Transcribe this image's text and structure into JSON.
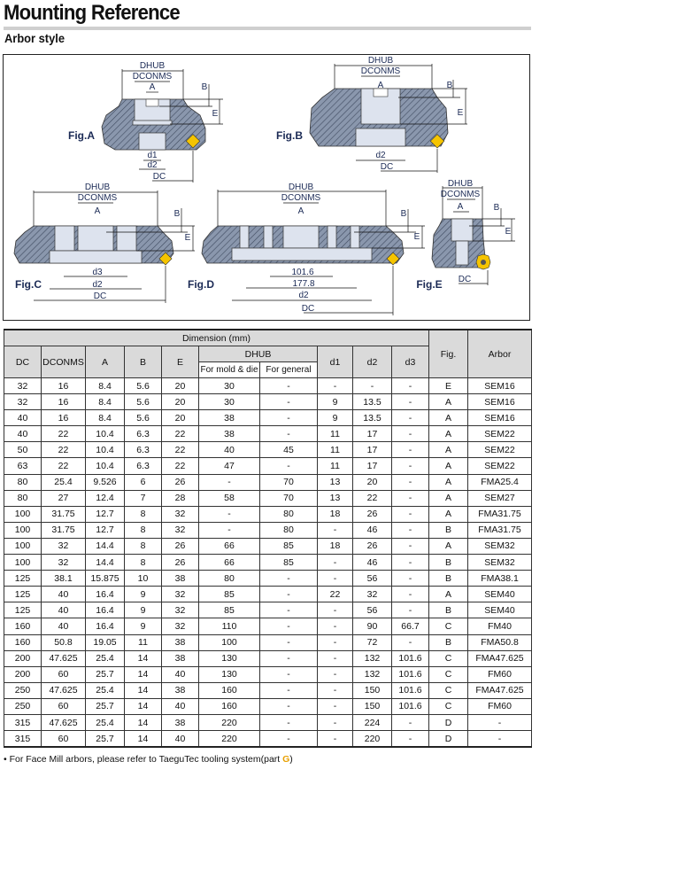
{
  "header": {
    "title": "Mounting Reference",
    "subtitle": "Arbor style"
  },
  "colors": {
    "insert": "#f5c400",
    "hatch_body": "#8a97ad",
    "bore": "#dde3ee",
    "header_bg": "#dadada",
    "part_g": "#e8a000"
  },
  "diagram": {
    "fig_a": {
      "label": "Fig.A",
      "dhub": "DHUB",
      "dconms": "DCONMS",
      "a": "A",
      "b": "B",
      "e": "E",
      "d1": "d1",
      "d2": "d2",
      "dc": "DC"
    },
    "fig_b": {
      "label": "Fig.B",
      "dhub": "DHUB",
      "dconms": "DCONMS",
      "a": "A",
      "b": "B",
      "e": "E",
      "d2": "d2",
      "dc": "DC"
    },
    "fig_c": {
      "label": "Fig.C",
      "dhub": "DHUB",
      "dconms": "DCONMS",
      "a": "A",
      "b": "B",
      "e": "E",
      "d3": "d3",
      "d2": "d2",
      "dc": "DC"
    },
    "fig_d": {
      "label": "Fig.D",
      "dhub": "DHUB",
      "dconms": "DCONMS",
      "a": "A",
      "b": "B",
      "e": "E",
      "dim1": "101.6",
      "dim2": "177.8",
      "d2": "d2",
      "dc": "DC"
    },
    "fig_e": {
      "label": "Fig.E",
      "dhub": "DHUB",
      "dconms": "DCONMS",
      "a": "A",
      "b": "B",
      "e": "E",
      "dc": "DC"
    }
  },
  "table": {
    "group_header": "Dimension (mm)",
    "columns": [
      "DC",
      "DCONMS",
      "A",
      "B",
      "E",
      "DHUB",
      "d1",
      "d2",
      "d3",
      "Fig.",
      "Arbor"
    ],
    "dhub_sub": [
      "For mold & die",
      "For general"
    ],
    "rows": [
      [
        "32",
        "16",
        "8.4",
        "5.6",
        "20",
        "30",
        "-",
        "-",
        "-",
        "-",
        "E",
        "SEM16"
      ],
      [
        "32",
        "16",
        "8.4",
        "5.6",
        "20",
        "30",
        "-",
        "9",
        "13.5",
        "-",
        "A",
        "SEM16"
      ],
      [
        "40",
        "16",
        "8.4",
        "5.6",
        "20",
        "38",
        "-",
        "9",
        "13.5",
        "-",
        "A",
        "SEM16"
      ],
      [
        "40",
        "22",
        "10.4",
        "6.3",
        "22",
        "38",
        "-",
        "11",
        "17",
        "-",
        "A",
        "SEM22"
      ],
      [
        "50",
        "22",
        "10.4",
        "6.3",
        "22",
        "40",
        "45",
        "11",
        "17",
        "-",
        "A",
        "SEM22"
      ],
      [
        "63",
        "22",
        "10.4",
        "6.3",
        "22",
        "47",
        "-",
        "11",
        "17",
        "-",
        "A",
        "SEM22"
      ],
      [
        "80",
        "25.4",
        "9.526",
        "6",
        "26",
        "-",
        "70",
        "13",
        "20",
        "-",
        "A",
        "FMA25.4"
      ],
      [
        "80",
        "27",
        "12.4",
        "7",
        "28",
        "58",
        "70",
        "13",
        "22",
        "-",
        "A",
        "SEM27"
      ],
      [
        "100",
        "31.75",
        "12.7",
        "8",
        "32",
        "-",
        "80",
        "18",
        "26",
        "-",
        "A",
        "FMA31.75"
      ],
      [
        "100",
        "31.75",
        "12.7",
        "8",
        "32",
        "-",
        "80",
        "-",
        "46",
        "-",
        "B",
        "FMA31.75"
      ],
      [
        "100",
        "32",
        "14.4",
        "8",
        "26",
        "66",
        "85",
        "18",
        "26",
        "-",
        "A",
        "SEM32"
      ],
      [
        "100",
        "32",
        "14.4",
        "8",
        "26",
        "66",
        "85",
        "-",
        "46",
        "-",
        "B",
        "SEM32"
      ],
      [
        "125",
        "38.1",
        "15.875",
        "10",
        "38",
        "80",
        "-",
        "-",
        "56",
        "-",
        "B",
        "FMA38.1"
      ],
      [
        "125",
        "40",
        "16.4",
        "9",
        "32",
        "85",
        "-",
        "22",
        "32",
        "-",
        "A",
        "SEM40"
      ],
      [
        "125",
        "40",
        "16.4",
        "9",
        "32",
        "85",
        "-",
        "-",
        "56",
        "-",
        "B",
        "SEM40"
      ],
      [
        "160",
        "40",
        "16.4",
        "9",
        "32",
        "110",
        "-",
        "-",
        "90",
        "66.7",
        "C",
        "FM40"
      ],
      [
        "160",
        "50.8",
        "19.05",
        "11",
        "38",
        "100",
        "-",
        "-",
        "72",
        "-",
        "B",
        "FMA50.8"
      ],
      [
        "200",
        "47.625",
        "25.4",
        "14",
        "38",
        "130",
        "-",
        "-",
        "132",
        "101.6",
        "C",
        "FMA47.625"
      ],
      [
        "200",
        "60",
        "25.7",
        "14",
        "40",
        "130",
        "-",
        "-",
        "132",
        "101.6",
        "C",
        "FM60"
      ],
      [
        "250",
        "47.625",
        "25.4",
        "14",
        "38",
        "160",
        "-",
        "-",
        "150",
        "101.6",
        "C",
        "FMA47.625"
      ],
      [
        "250",
        "60",
        "25.7",
        "14",
        "40",
        "160",
        "-",
        "-",
        "150",
        "101.6",
        "C",
        "FM60"
      ],
      [
        "315",
        "47.625",
        "25.4",
        "14",
        "38",
        "220",
        "-",
        "-",
        "224",
        "-",
        "D",
        "-"
      ],
      [
        "315",
        "60",
        "25.7",
        "14",
        "40",
        "220",
        "-",
        "-",
        "220",
        "-",
        "D",
        "-"
      ]
    ]
  },
  "note": {
    "text": "• For Face Mill arbors, please refer to TaeguTec tooling system(part ",
    "part": "G",
    "close": ")"
  }
}
